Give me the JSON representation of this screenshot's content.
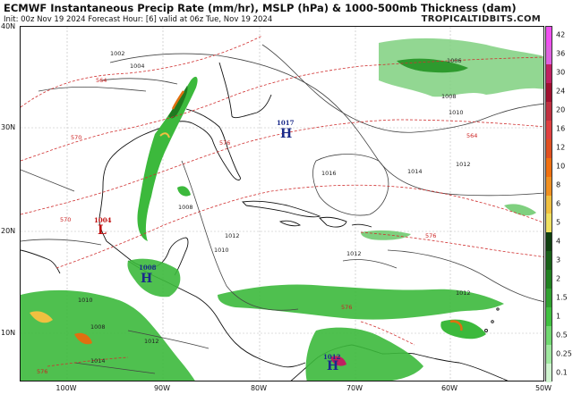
{
  "header": {
    "title": "ECMWF Instantaneous Precip Rate (mm/hr), MSLP (hPa) & 1000-500mb Thickness (dam)",
    "subtitle": "Init: 00z Nov 19 2024   Forecast Hour: [6]   valid at 06z Tue, Nov 19 2024",
    "brand": "TROPICALTIDBITS.COM"
  },
  "axes": {
    "lat_labels": [
      "40N",
      "30N",
      "20N",
      "10N"
    ],
    "lon_labels": [
      "100W",
      "90W",
      "80W",
      "70W",
      "60W",
      "50W"
    ]
  },
  "colorbar": {
    "labels": [
      "42",
      "36",
      "30",
      "24",
      "20",
      "16",
      "12",
      "10",
      "8",
      "6",
      "5",
      "4",
      "3",
      "2",
      "1.5",
      "1",
      "0.5",
      "0.25",
      "0.1"
    ],
    "colors": [
      "#f050f0",
      "#e060e0",
      "#c02060",
      "#a01030",
      "#c03040",
      "#e04040",
      "#e05020",
      "#f07010",
      "#f09020",
      "#f0c040",
      "#f0e060",
      "#104010",
      "#186018",
      "#208020",
      "#30a030",
      "#40c040",
      "#70d870",
      "#a0e8a0",
      "#d0f4d0"
    ]
  },
  "pressure_centers": [
    {
      "symbol": "H",
      "value": "1017",
      "color": "#1a2a8a"
    },
    {
      "symbol": "L",
      "value": "1004",
      "color": "#c01010"
    },
    {
      "symbol": "H",
      "value": "1008",
      "color": "#1a2a8a"
    },
    {
      "symbol": "H",
      "value": "1012",
      "color": "#1a2a8a"
    }
  ],
  "isobar_labels": [
    "1002",
    "1004",
    "1006",
    "1008",
    "1010",
    "1012",
    "1014",
    "1016",
    "1008",
    "1012",
    "1010",
    "1012",
    "1012",
    "1010",
    "1008",
    "1012",
    "1014"
  ],
  "thickness_labels": [
    "564",
    "570",
    "576",
    "564",
    "576",
    "570",
    "576",
    "576"
  ]
}
